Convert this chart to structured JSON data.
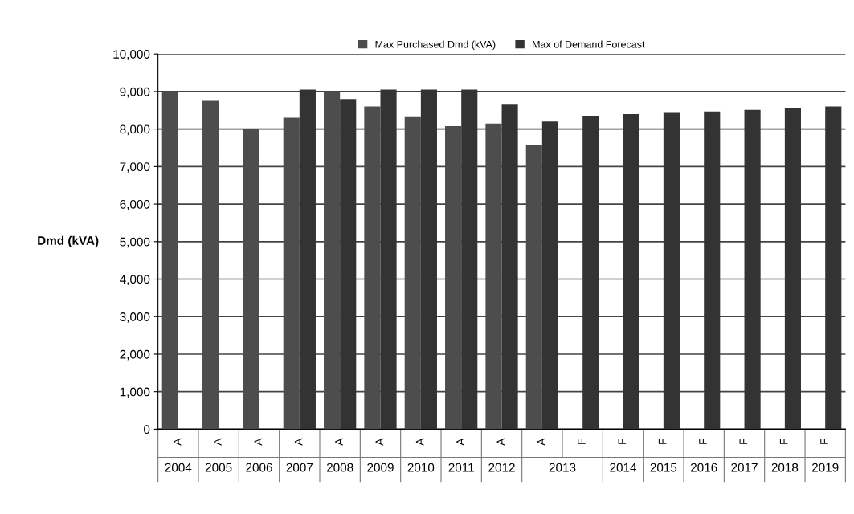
{
  "chart_data": {
    "type": "bar",
    "ylabel": "Dmd (kVA)",
    "categories": [
      "A",
      "A",
      "A",
      "A",
      "A",
      "A",
      "A",
      "A",
      "A",
      "A",
      "F",
      "F",
      "F",
      "F",
      "F",
      "F",
      "F"
    ],
    "series": [
      {
        "name": "Max Purchased Dmd (kVA)",
        "color": "#4d4d4d",
        "values": [
          9000,
          8750,
          8000,
          8300,
          9000,
          8600,
          8320,
          8080,
          8150,
          7570,
          null,
          null,
          null,
          null,
          null,
          null,
          null
        ]
      },
      {
        "name": "Max of Demand Forecast",
        "color": "#333333",
        "values": [
          null,
          null,
          null,
          9050,
          8800,
          9050,
          9050,
          9050,
          8650,
          8200,
          8350,
          8400,
          8430,
          8470,
          8510,
          8550,
          8600
        ]
      }
    ],
    "annotations": [
      "2004",
      "2005",
      "2006",
      "2007",
      "2008",
      "2009",
      "2010",
      "2011",
      "2012",
      "2013",
      "2014",
      "2015",
      "2016",
      "2017",
      "2018",
      "2019"
    ],
    "ylim": [
      0,
      10000
    ],
    "yticks": [
      {
        "value": 0,
        "label": "0"
      },
      {
        "value": 1000,
        "label": "1,000"
      },
      {
        "value": 2000,
        "label": "2,000"
      },
      {
        "value": 3000,
        "label": "3,000"
      },
      {
        "value": 4000,
        "label": "4,000"
      },
      {
        "value": 5000,
        "label": "5,000"
      },
      {
        "value": 6000,
        "label": "6,000"
      },
      {
        "value": 7000,
        "label": "7,000"
      },
      {
        "value": 8000,
        "label": "8,000"
      },
      {
        "value": 9000,
        "label": "9,000"
      },
      {
        "value": 10000,
        "label": "10,000"
      }
    ],
    "grid": "y",
    "legend": "top"
  }
}
